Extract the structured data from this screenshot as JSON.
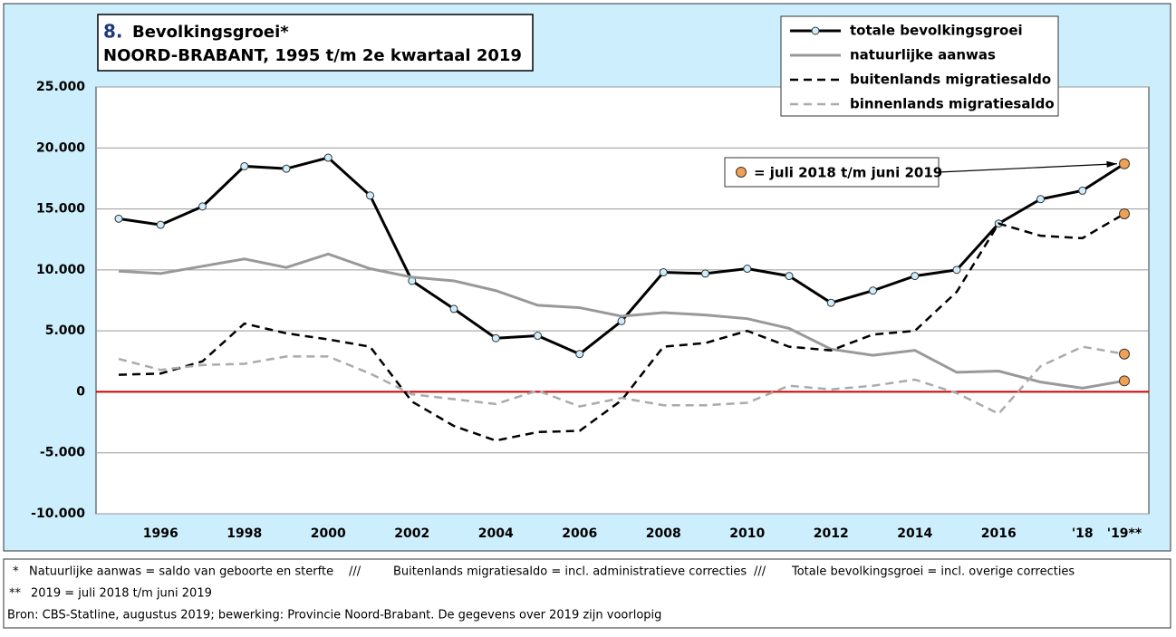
{
  "chart_data": {
    "type": "line",
    "title_number": "8.",
    "title": "Bevolkingsgroei*",
    "subtitle": "NOORD-BRABANT, 1995 t/m 2e kwartaal 2019",
    "categories": [
      null,
      "1996",
      null,
      "1998",
      null,
      "2000",
      null,
      "2002",
      null,
      "2004",
      null,
      "2006",
      null,
      "2008",
      null,
      "2010",
      null,
      "2012",
      null,
      "2014",
      null,
      "2016",
      null,
      "'18",
      "'19**"
    ],
    "series": [
      {
        "name": "totale bevolkingsgroei",
        "color": "#000000",
        "dash": false,
        "markers": true,
        "width": 3,
        "values": [
          14200,
          13700,
          15200,
          18500,
          18300,
          19200,
          16100,
          9100,
          6800,
          4400,
          4600,
          3100,
          5800,
          9800,
          9700,
          10100,
          9500,
          7300,
          8300,
          9500,
          10000,
          13800,
          15800,
          16500,
          18700
        ]
      },
      {
        "name": "natuurlijke aanwas",
        "color": "#999999",
        "dash": false,
        "markers": false,
        "width": 3,
        "values": [
          9900,
          9700,
          10300,
          10900,
          10200,
          11300,
          10100,
          9400,
          9100,
          8300,
          7100,
          6900,
          6200,
          6500,
          6300,
          6000,
          5200,
          3500,
          3000,
          3400,
          1600,
          1700,
          800,
          300,
          900
        ]
      },
      {
        "name": "buitenlands migratiesaldo",
        "color": "#000000",
        "dash": true,
        "markers": false,
        "width": 2.5,
        "values": [
          1400,
          1500,
          2500,
          5600,
          4800,
          4300,
          3700,
          -800,
          -2800,
          -4000,
          -3300,
          -3200,
          -700,
          3700,
          4000,
          5000,
          3700,
          3400,
          4700,
          5000,
          8200,
          13800,
          12800,
          12600,
          14600
        ]
      },
      {
        "name": "binnenlands migratiesaldo",
        "color": "#aaaaaa",
        "dash": true,
        "markers": false,
        "width": 2.5,
        "values": [
          2700,
          1800,
          2200,
          2300,
          2900,
          2900,
          1500,
          -200,
          -600,
          -1000,
          100,
          -1200,
          -500,
          -1100,
          -1100,
          -900,
          500,
          200,
          500,
          1000,
          -100,
          -1800,
          2100,
          3700,
          3100
        ]
      }
    ],
    "ylim": [
      -10000,
      25000
    ],
    "yticks": [
      {
        "value": -10000,
        "label": "-10.000"
      },
      {
        "value": -5000,
        "label": "-5.000"
      },
      0,
      {
        "value": 5000,
        "label": "5.000"
      },
      {
        "value": 10000,
        "label": "10.000"
      },
      {
        "value": 15000,
        "label": "15.000"
      },
      {
        "value": 20000,
        "label": "20.000"
      },
      {
        "value": 25000,
        "label": "25.000"
      }
    ],
    "grid": true,
    "zero_line_color": "#cc0000",
    "highlight_color": "#f0a050",
    "annotation": "= juli 2018 t/m juni 2019",
    "legend": "upper right"
  },
  "notes": {
    "line1": [
      "*",
      "Natuurlijke aanwas = saldo van geboorte en sterfte",
      "///",
      "Buitenlands migratiesaldo = incl. administratieve correcties",
      "///",
      "Totale bevolkingsgroei = incl. overige correcties"
    ],
    "line2": [
      "**",
      "2019 = juli 2018 t/m juni 2019"
    ],
    "source": "Bron: CBS-Statline, augustus 2019; bewerking: Provincie Noord-Brabant. De gegevens over 2019 zijn voorlopig"
  }
}
